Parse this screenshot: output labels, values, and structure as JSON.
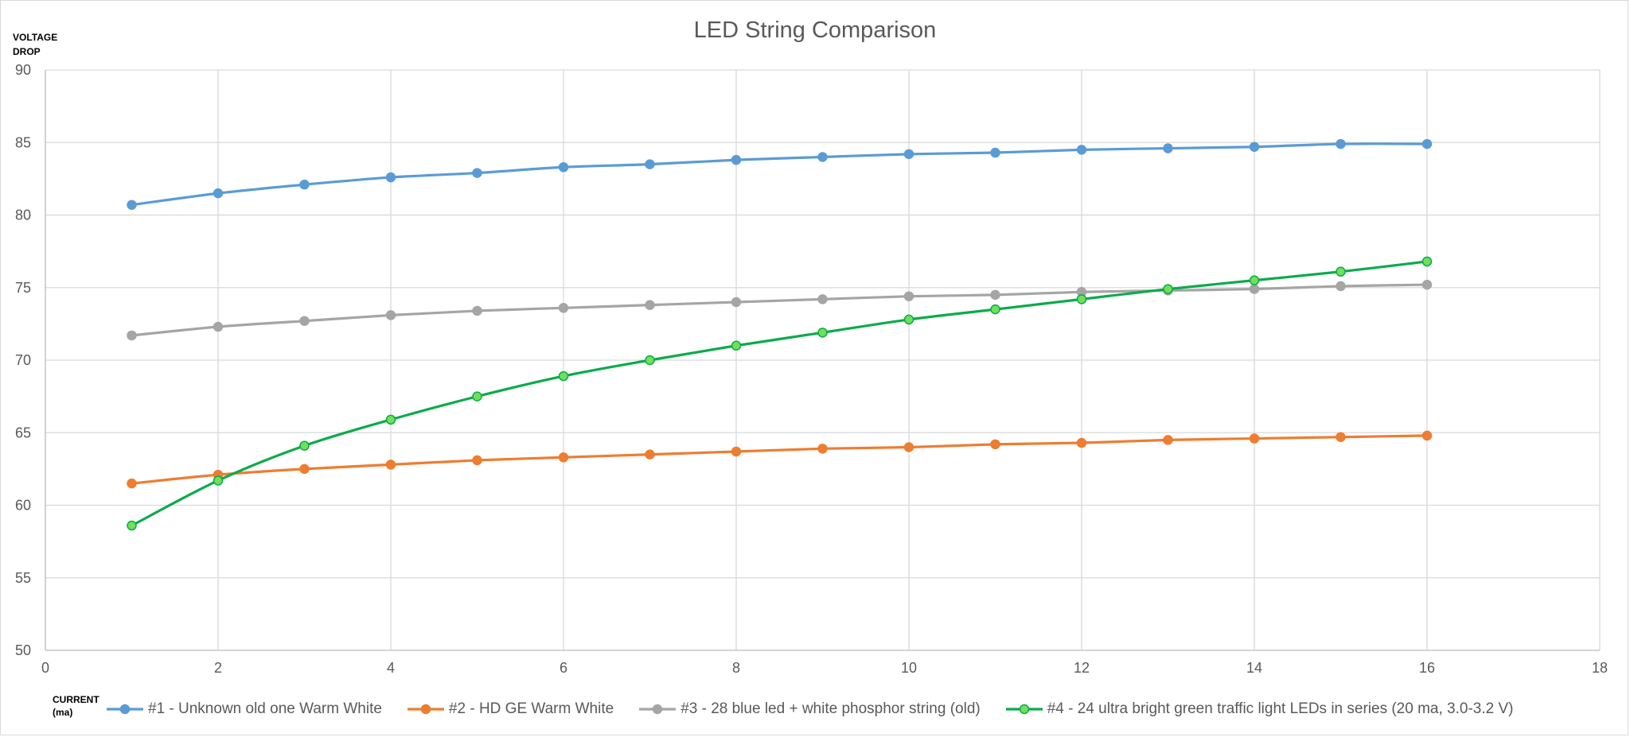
{
  "chart_data": {
    "type": "line",
    "title": "LED String Comparison",
    "ylabel_line1": "VOLTAGE",
    "ylabel_line2": "DROP",
    "xlabel_line1": "CURRENT",
    "xlabel_line2": "(ma)",
    "xlim": [
      0,
      18
    ],
    "ylim": [
      50,
      90
    ],
    "xticks": [
      0,
      2,
      4,
      6,
      8,
      10,
      12,
      14,
      16,
      18
    ],
    "yticks": [
      50,
      55,
      60,
      65,
      70,
      75,
      80,
      85,
      90
    ],
    "grid": true,
    "legend_position": "bottom",
    "x": [
      1,
      2,
      3,
      4,
      5,
      6,
      7,
      8,
      9,
      10,
      11,
      12,
      13,
      14,
      15,
      16
    ],
    "series": [
      {
        "name": "#1 - Unknown old one Warm White",
        "color": "#5b9bd5",
        "marker_fill": "#5b9bd5",
        "values": [
          80.7,
          81.5,
          82.1,
          82.6,
          82.9,
          83.3,
          83.5,
          83.8,
          84.0,
          84.2,
          84.3,
          84.5,
          84.6,
          84.7,
          84.9,
          84.9
        ]
      },
      {
        "name": "#2 - HD GE Warm White",
        "color": "#ed7d31",
        "marker_fill": "#ed7d31",
        "values": [
          61.5,
          62.1,
          62.5,
          62.8,
          63.1,
          63.3,
          63.5,
          63.7,
          63.9,
          64.0,
          64.2,
          64.3,
          64.5,
          64.6,
          64.7,
          64.8
        ]
      },
      {
        "name": "#3 - 28 blue led + white phosphor string (old)",
        "color": "#a5a5a5",
        "marker_fill": "#a5a5a5",
        "values": [
          71.7,
          72.3,
          72.7,
          73.1,
          73.4,
          73.6,
          73.8,
          74.0,
          74.2,
          74.4,
          74.5,
          74.7,
          74.8,
          74.9,
          75.1,
          75.2
        ]
      },
      {
        "name": "#4 - 24  ultra bright green traffic light LEDs in series (20 ma, 3.0-3.2 V)",
        "color": "#0bab4b",
        "marker_fill": "#6ee05a",
        "values": [
          58.6,
          61.7,
          64.1,
          65.9,
          67.5,
          68.9,
          70.0,
          71.0,
          71.9,
          72.8,
          73.5,
          74.2,
          74.9,
          75.5,
          76.1,
          76.8
        ]
      }
    ]
  }
}
